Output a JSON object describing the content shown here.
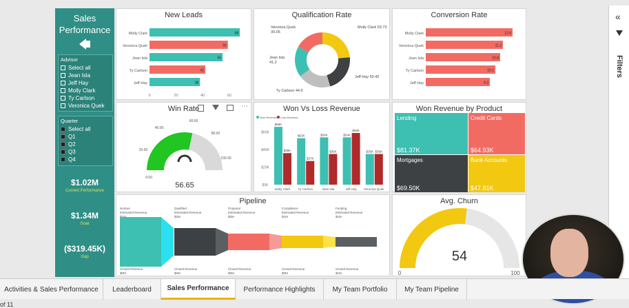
{
  "sidebar": {
    "title": "Sales Performance",
    "advisor_header": "Advisor",
    "advisor_items": [
      "Select all",
      "Jean Isla",
      "Jeff Hay",
      "Molly Clark",
      "Ty Carlson",
      "Veronica Quek"
    ],
    "quarter_header": "Quarter",
    "quarter_items": [
      "Select all",
      "Q1",
      "Q2",
      "Q3",
      "Q4"
    ],
    "kpis": [
      {
        "value": "$1.02M",
        "label": "Current Performance"
      },
      {
        "value": "$1.34M",
        "label": "Goal"
      },
      {
        "value": "($319.45K)",
        "label": "Gap"
      }
    ]
  },
  "colors": {
    "teal": "#3dbfb2",
    "red": "#f26b63",
    "yellow": "#f2c811",
    "dark": "#3d4143",
    "green": "#22c622"
  },
  "chart_data": [
    {
      "type": "bar",
      "title": "New Leads",
      "categories": [
        "Molly Clark",
        "Veronica Quek",
        "Jean Isla",
        "Ty Carlson",
        "Jeff Hay"
      ],
      "values": [
        68,
        59,
        55,
        42,
        38
      ],
      "colors": [
        "teal",
        "red",
        "teal",
        "red",
        "teal"
      ],
      "xticks": [
        "0",
        "20",
        "40",
        "60"
      ],
      "xlim": [
        0,
        70
      ]
    },
    {
      "type": "pie",
      "title": "Qualification Rate",
      "slices": [
        {
          "label": "Molly Clark",
          "value": 53.73,
          "color": "yellow"
        },
        {
          "label": "Jeff Hay",
          "value": 50.42,
          "color": "dark"
        },
        {
          "label": "Ty Carlson",
          "value": 44.6,
          "color": "#bfbfbf"
        },
        {
          "label": "Jean Isla",
          "value": 41.2,
          "color": "teal"
        },
        {
          "label": "Veronica Quek",
          "value": 39.05,
          "color": "red"
        }
      ],
      "labels": [
        "Molly Clark 53.73",
        "Jeff Hay 50.42",
        "Ty Carlson 44.6",
        "Jean Isla\n41.2",
        "Veronica Quek\n39.05"
      ]
    },
    {
      "type": "bar",
      "title": "Conversion Rate",
      "categories": [
        "Molly Clark",
        "Veronica Quek",
        "Jean Isla",
        "Ty Carlson",
        "Jeff Hay"
      ],
      "values": [
        12.6,
        11.2,
        10.8,
        10.1,
        9.3
      ],
      "value_labels": [
        "12.6",
        "11.2",
        "10.8",
        "10.1",
        "9.3"
      ],
      "colors": [
        "red",
        "red",
        "red",
        "red",
        "red"
      ],
      "xlim": [
        0,
        13.5
      ]
    },
    {
      "type": "gauge",
      "title": "Win Rate",
      "value": 56.65,
      "value_label": "56.65",
      "min": 0,
      "max": 100,
      "ticks": [
        "0.00",
        "20.00",
        "40.00",
        "60.00",
        "80.00",
        "100.00"
      ]
    },
    {
      "type": "bar",
      "title": "Won Vs Loss Revenue",
      "legend": [
        "Won Revenue",
        "Loss Revenue"
      ],
      "categories": [
        "Molly Clark",
        "Ty Carlson",
        "Jean Isla",
        "Jeff Hay",
        "Veronica Quek"
      ],
      "series": [
        {
          "name": "Won Revenue",
          "values": [
            66,
            53,
            54,
            54,
            35
          ],
          "labels": [
            "$66K",
            "$53K",
            "$54K",
            "$54K",
            "$35K"
          ],
          "color": "teal"
        },
        {
          "name": "Loss Revenue",
          "values": [
            36,
            27,
            35,
            59,
            35
          ],
          "labels": [
            "$36K",
            "$27K",
            "$35K",
            "$59K",
            "$35K"
          ],
          "color": "#b02a2a"
        }
      ],
      "yticks": [
        "$60K",
        "$40K",
        "$20K",
        "$0K"
      ],
      "ylim": [
        0,
        70
      ]
    },
    {
      "type": "treemap",
      "title": "Won Revenue by Product",
      "items": [
        {
          "label": "Lending",
          "value": "$81.37K",
          "color": "teal"
        },
        {
          "label": "Credit Cards",
          "value": "$64.93K",
          "color": "red"
        },
        {
          "label": "Mortgages",
          "value": "$69.50K",
          "color": "dark"
        },
        {
          "label": "Bank Accounts",
          "value": "$47.81K",
          "color": "yellow"
        }
      ]
    },
    {
      "type": "funnel",
      "title": "Pipeline",
      "stages": [
        {
          "label": "Nurture",
          "sub": "Estimated Revenue",
          "amt": "$1M",
          "closed": "Closed Revenue",
          "closed_amt": "$0M",
          "color": "teal",
          "accent": "#2be0f0"
        },
        {
          "label": "Qualified",
          "sub": "Estimated Revenue",
          "amt": "$2M",
          "closed": "Closed Revenue",
          "closed_amt": "$0M",
          "color": "dark",
          "accent": "#5a5f62"
        },
        {
          "label": "Proposal",
          "sub": "Estimated Revenue",
          "amt": "$2M",
          "closed": "Closed Revenue",
          "closed_amt": "$0M",
          "color": "red",
          "accent": "#f59a94"
        },
        {
          "label": "Compliance",
          "sub": "Estimated Revenue",
          "amt": "$1M",
          "closed": "Closed Revenue",
          "closed_amt": "$0M",
          "color": "yellow",
          "accent": "#ffe14a"
        },
        {
          "label": "Funding",
          "sub": "Estimated Revenue",
          "amt": "$1M",
          "closed": "Closed Revenue",
          "closed_amt": "$1M",
          "color": "#5a5f62",
          "accent": "#777"
        }
      ]
    },
    {
      "type": "gauge",
      "title": "Avg. Churn",
      "value": 54,
      "value_label": "54",
      "min": 0,
      "max": 100,
      "ticks": [
        "0",
        "100"
      ]
    }
  ],
  "tabs": [
    "Activities & Sales Performance",
    "Leaderboard",
    "Sales Performance",
    "Performance Highlights",
    "My Team Portfolio",
    "My Team Pipeline"
  ],
  "active_tab": "Sales Performance",
  "page_indicator": "of 11",
  "filters_label": "Filters"
}
